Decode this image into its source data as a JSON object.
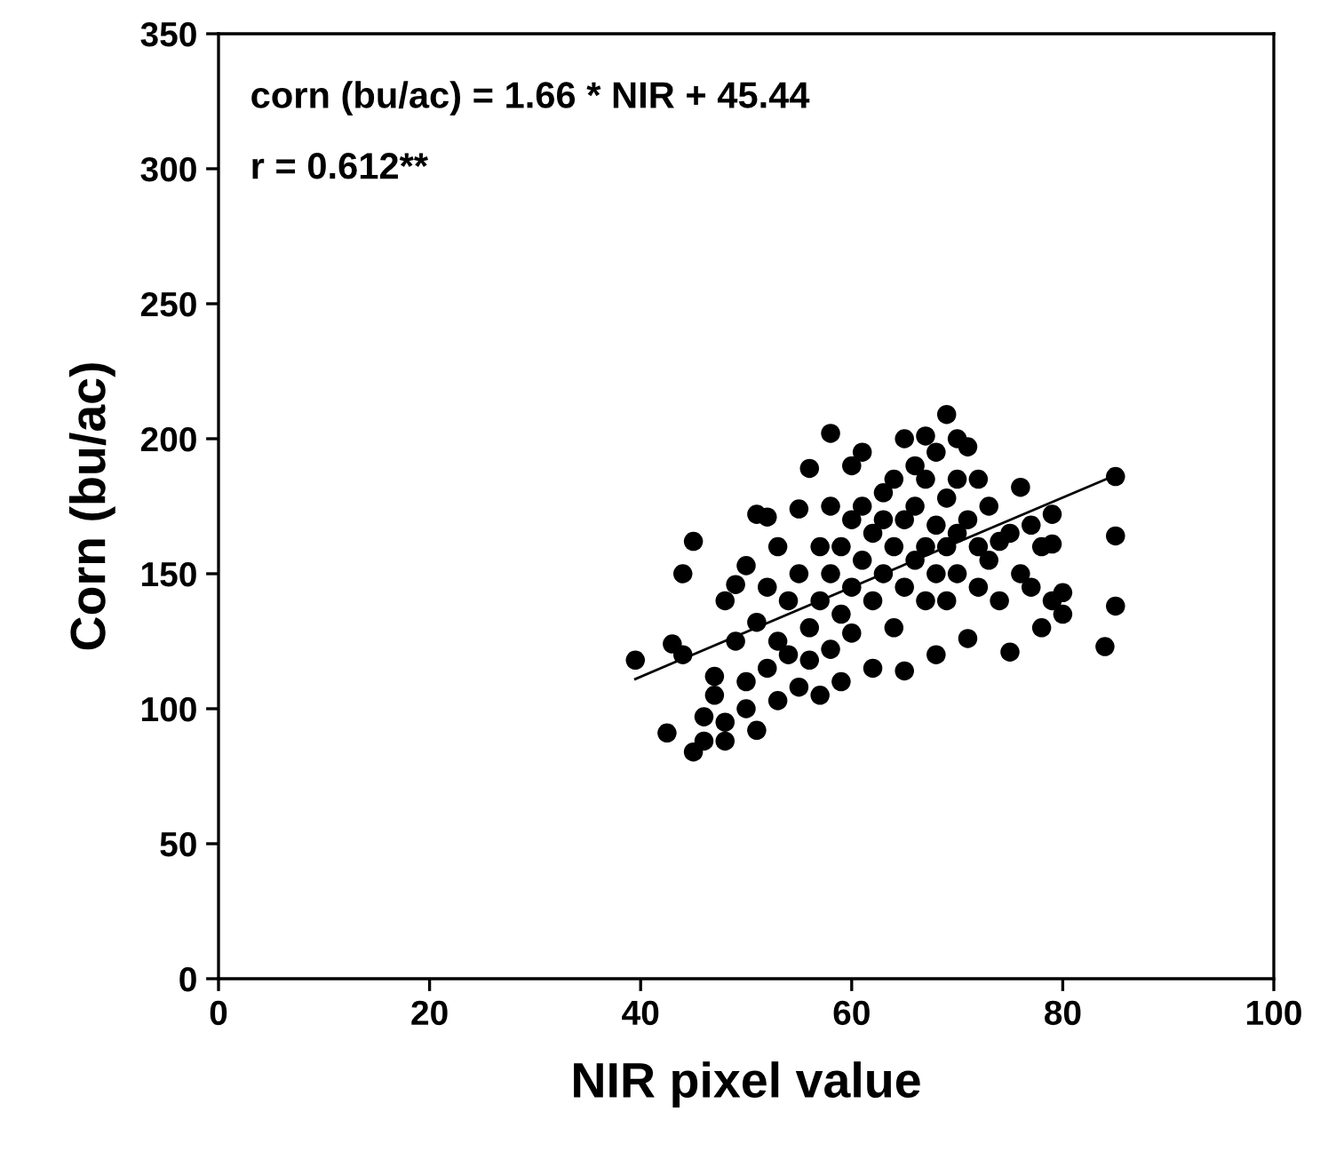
{
  "chart_data": {
    "type": "scatter",
    "xlabel": "NIR pixel value",
    "ylabel": "Corn (bu/ac)",
    "annotations": [
      "corn (bu/ac) = 1.66 * NIR + 45.44",
      "r = 0.612**"
    ],
    "xlim": [
      0,
      100
    ],
    "xticks": [
      0,
      20,
      40,
      60,
      80,
      100
    ],
    "ylim": [
      0,
      350
    ],
    "yticks": [
      0,
      50,
      100,
      150,
      200,
      250,
      300,
      350
    ],
    "grid": false,
    "legend": false,
    "marker": "circle",
    "series": [
      {
        "color": "#000000",
        "x": [
          39.5,
          43,
          42.5,
          44,
          44,
          45,
          45,
          46,
          46,
          47,
          47,
          48,
          48,
          48,
          49,
          49,
          50,
          50,
          50,
          51,
          51,
          51,
          52,
          52,
          52,
          53,
          53,
          53,
          54,
          54,
          55,
          55,
          55,
          56,
          56,
          56,
          57,
          57,
          57,
          58,
          58,
          58,
          58,
          59,
          59,
          59,
          60,
          60,
          60,
          60,
          61,
          61,
          61,
          62,
          62,
          62,
          63,
          63,
          63,
          64,
          64,
          64,
          65,
          65,
          65,
          65,
          66,
          66,
          66,
          67,
          67,
          67,
          67,
          68,
          68,
          68,
          68,
          69,
          69,
          69,
          69,
          70,
          70,
          70,
          70,
          71,
          71,
          71,
          72,
          72,
          72,
          73,
          73,
          74,
          74,
          75,
          75,
          76,
          76,
          77,
          77,
          78,
          78,
          79,
          79,
          79,
          80,
          80,
          84,
          85,
          85,
          85
        ],
        "values": [
          118,
          124,
          91,
          120,
          150,
          162,
          84,
          97,
          88,
          105,
          112,
          140,
          95,
          88,
          146,
          125,
          153,
          110,
          100,
          92,
          132,
          172,
          171,
          145,
          115,
          160,
          103,
          125,
          140,
          120,
          174,
          150,
          108,
          189,
          130,
          118,
          160,
          105,
          140,
          202,
          175,
          150,
          122,
          135,
          160,
          110,
          190,
          145,
          170,
          128,
          195,
          155,
          175,
          165,
          140,
          115,
          180,
          150,
          170,
          185,
          160,
          130,
          200,
          145,
          114,
          170,
          190,
          175,
          155,
          201,
          160,
          140,
          185,
          195,
          168,
          150,
          120,
          209,
          178,
          160,
          140,
          200,
          185,
          165,
          150,
          197,
          170,
          126,
          185,
          160,
          145,
          175,
          155,
          162,
          140,
          165,
          121,
          182,
          150,
          168,
          145,
          160,
          130,
          172,
          140,
          161,
          143,
          135,
          123,
          186,
          164,
          138
        ]
      },
      {
        "type": "line",
        "color": "#000000",
        "x": [
          39.5,
          85
        ],
        "values": [
          111.0,
          186.5
        ],
        "marker": "none"
      }
    ]
  }
}
